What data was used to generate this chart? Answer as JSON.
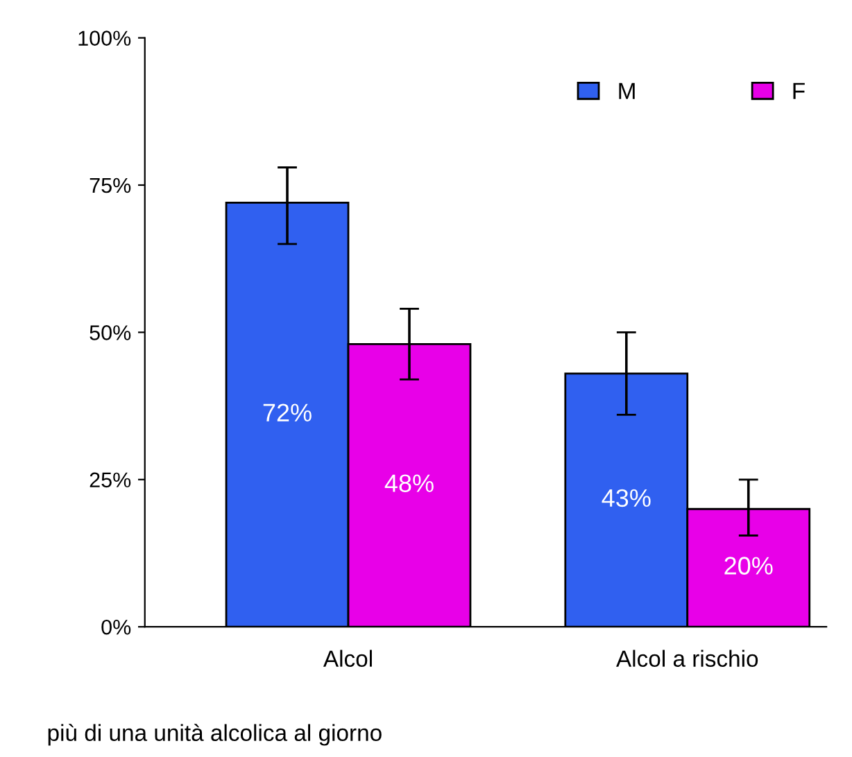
{
  "chart_data": {
    "type": "bar",
    "categories": [
      "Alcol",
      "Alcol a rischio"
    ],
    "series": [
      {
        "name": "M",
        "color": "#3060f0",
        "values": [
          72,
          43
        ],
        "errors": [
          [
            65,
            78
          ],
          [
            36,
            50
          ]
        ],
        "value_labels": [
          "72%",
          "43%"
        ]
      },
      {
        "name": "F",
        "color": "#e800e8",
        "values": [
          48,
          20
        ],
        "errors": [
          [
            42,
            54
          ],
          [
            15.5,
            25
          ]
        ],
        "value_labels": [
          "48%",
          "20%"
        ]
      }
    ],
    "ylim": [
      0,
      100
    ],
    "yticks": [
      {
        "value": 0,
        "label": "0%"
      },
      {
        "value": 25,
        "label": "25%"
      },
      {
        "value": 50,
        "label": "50%"
      },
      {
        "value": 75,
        "label": "75%"
      },
      {
        "value": 100,
        "label": "100%"
      }
    ],
    "grid": false,
    "legend": "top right",
    "annotations": [
      "più di una unità alcolica al giorno"
    ]
  }
}
